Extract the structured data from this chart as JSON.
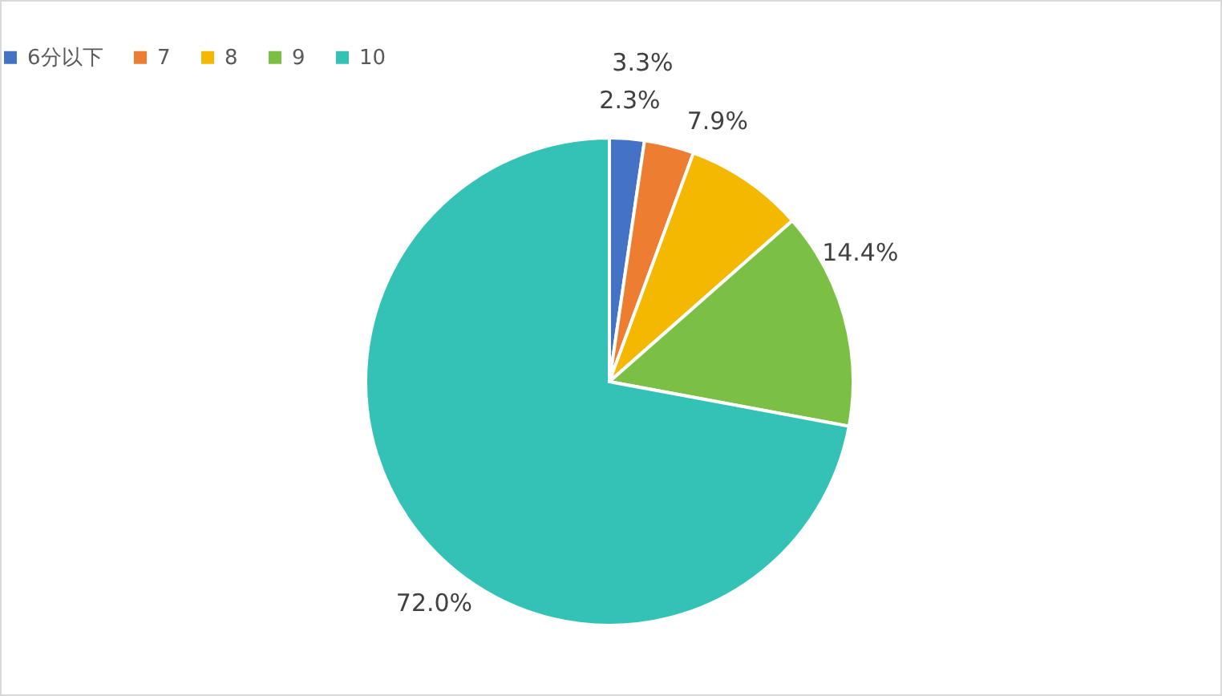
{
  "chart_data": {
    "type": "pie",
    "categories": [
      "6分以下",
      "7",
      "8",
      "9",
      "10"
    ],
    "values": [
      2.3,
      3.3,
      7.9,
      14.4,
      72.0
    ],
    "colors": [
      "#4472c4",
      "#ed7d31",
      "#f5b800",
      "#7bbf45",
      "#33c2b5"
    ],
    "value_labels": [
      "2.3%",
      "3.3%",
      "7.9%",
      "14.4%",
      "72.0%"
    ],
    "legend": "top"
  }
}
